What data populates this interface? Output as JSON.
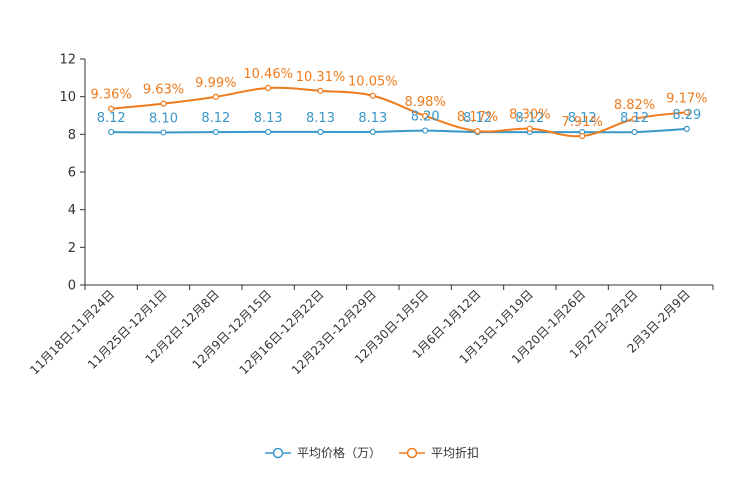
{
  "chart_data": {
    "type": "line",
    "categories": [
      "11月18日-11月24日",
      "11月25日-12月1日",
      "12月2日-12月8日",
      "12月9日-12月15日",
      "12月16日-12月22日",
      "12月23日-12月29日",
      "12月30日-1月5日",
      "1月6日-1月12日",
      "1月13日-1月19日",
      "1月20日-1月26日",
      "1月27日-2月2日",
      "2月3日-2月9日"
    ],
    "ylim": [
      0,
      12
    ],
    "yticks": [
      0,
      2,
      4,
      6,
      8,
      10,
      12
    ],
    "series": [
      {
        "name": "平均价格（万）",
        "color": "#3a97c9",
        "values": [
          8.12,
          8.1,
          8.12,
          8.13,
          8.13,
          8.13,
          8.2,
          8.12,
          8.12,
          8.12,
          8.12,
          8.29
        ],
        "labels": [
          "8.12",
          "8.10",
          "8.12",
          "8.13",
          "8.13",
          "8.13",
          "8.20",
          "8.12",
          "8.12",
          "8.12",
          "8.12",
          "8.29"
        ]
      },
      {
        "name": "平均折扣",
        "color": "#ef7b1c",
        "values": [
          9.36,
          9.63,
          9.99,
          10.46,
          10.31,
          10.05,
          8.98,
          8.17,
          8.3,
          7.91,
          8.82,
          9.17
        ],
        "labels": [
          "9.36%",
          "9.63%",
          "9.99%",
          "10.46%",
          "10.31%",
          "10.05%",
          "8.98%",
          "8.17%",
          "8.30%",
          "7.91%",
          "8.82%",
          "9.17%"
        ]
      }
    ],
    "legend": "bottom"
  }
}
